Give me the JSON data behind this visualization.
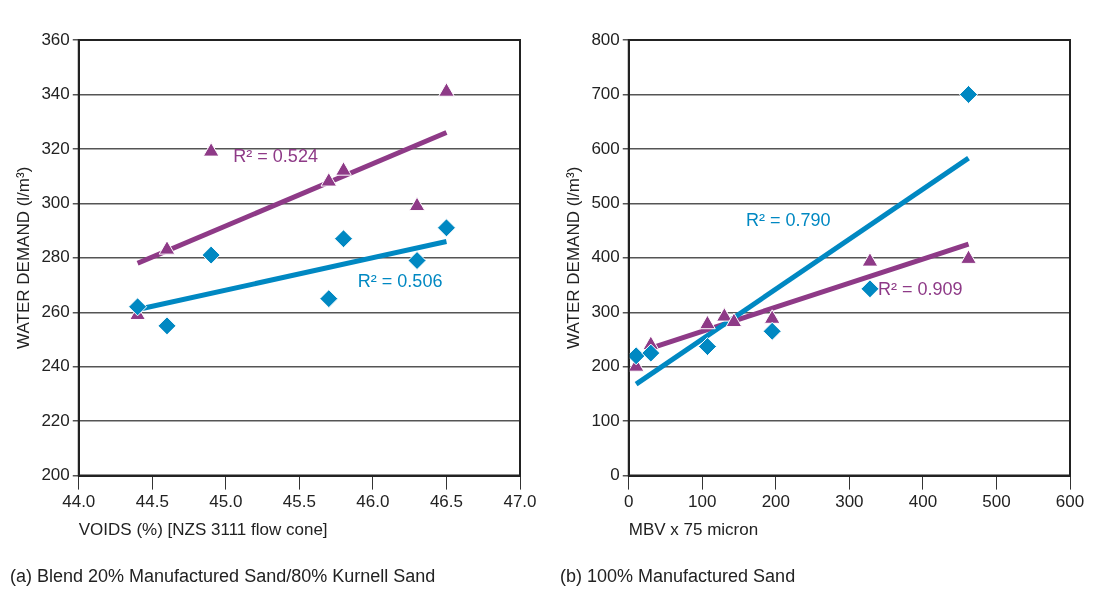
{
  "chart_data": [
    {
      "type": "scatter",
      "title": "(a) Blend 20% Manufactured Sand/80% Kurnell Sand",
      "xlabel": "VOIDS (%) [NZS 3111 flow cone]",
      "ylabel": "WATER DEMAND (l/m³)",
      "series": [
        {
          "type": "scatter",
          "marker": "diamond",
          "color": "#0088c2",
          "x": [
            44.4,
            44.6,
            44.9,
            45.7,
            45.8,
            46.3,
            46.5
          ],
          "values": [
            262,
            255,
            281,
            265,
            287,
            279,
            291
          ]
        },
        {
          "type": "scatter",
          "marker": "triangle",
          "color": "#8e3a87",
          "x": [
            44.4,
            44.6,
            44.9,
            45.7,
            45.8,
            46.3,
            46.5
          ],
          "values": [
            259,
            283,
            319,
            308,
            312,
            299,
            341
          ]
        },
        {
          "type": "line",
          "marker": "none",
          "color": "#0088c2",
          "x": [
            44.4,
            46.5
          ],
          "values": [
            261,
            286
          ]
        },
        {
          "type": "line",
          "marker": "none",
          "color": "#8e3a87",
          "x": [
            44.4,
            46.5
          ],
          "values": [
            278,
            326
          ]
        }
      ],
      "annotations": [
        "R² = 0.506",
        "R² = 0.524"
      ],
      "xlim": [
        44,
        47
      ],
      "xticks": [
        {
          "value": 44,
          "label": "44.0"
        },
        {
          "value": 44.5,
          "label": "44.5"
        },
        {
          "value": 45,
          "label": "45.0"
        },
        {
          "value": 45.5,
          "label": "45.5"
        },
        {
          "value": 46,
          "label": "46.0"
        },
        {
          "value": 46.5,
          "label": "46.5"
        },
        {
          "value": 47,
          "label": "47.0"
        }
      ],
      "ylim": [
        200,
        360
      ],
      "yticks": [
        200,
        220,
        240,
        260,
        280,
        300,
        320,
        340,
        360
      ],
      "grid": "y",
      "legend": false
    },
    {
      "type": "scatter",
      "title": "(b) 100% Manufactured Sand",
      "xlabel": "MBV x 75 micron",
      "ylabel": "WATER DEMAND (l/m³)",
      "series": [
        {
          "type": "scatter",
          "marker": "diamond",
          "color": "#0088c2",
          "x": [
            10,
            30,
            107,
            145,
            195,
            328,
            462
          ],
          "values": [
            220,
            225,
            237,
            null,
            265,
            343,
            700
          ]
        },
        {
          "type": "scatter",
          "marker": "triangle",
          "color": "#8e3a87",
          "x": [
            10,
            30,
            107,
            130,
            143,
            195,
            328,
            462
          ],
          "values": [
            200,
            240,
            278,
            292,
            282,
            288,
            393,
            398
          ]
        },
        {
          "type": "line",
          "marker": "none",
          "color": "#0088c2",
          "x": [
            10,
            462
          ],
          "values": [
            168,
            583
          ]
        },
        {
          "type": "line",
          "marker": "none",
          "color": "#8e3a87",
          "x": [
            25,
            462
          ],
          "values": [
            232,
            425
          ]
        }
      ],
      "annotations": [
        "R² = 0.790",
        "R² = 0.909"
      ],
      "xlim": [
        0,
        600
      ],
      "xticks": [
        0,
        100,
        200,
        300,
        400,
        500,
        600
      ],
      "ylim": [
        0,
        800
      ],
      "yticks": [
        0,
        100,
        200,
        300,
        400,
        500,
        600,
        700,
        800
      ],
      "grid": "y",
      "legend": false
    }
  ]
}
